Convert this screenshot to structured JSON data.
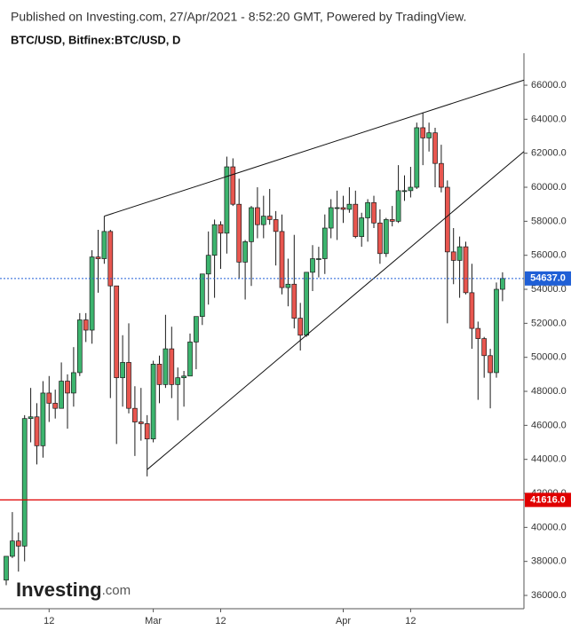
{
  "chart_data": {
    "type": "candlestick",
    "title": "Published on Investing.com, 27/Apr/2021 - 8:52:20 GMT, Powered by TradingView.",
    "subtitle": "BTC/USD, Bitfinex:BTC/USD, D",
    "logo": {
      "name": "Investing",
      "suffix": ".com"
    },
    "categories": [
      null,
      null,
      null,
      null,
      null,
      null,
      null,
      "12",
      null,
      null,
      null,
      null,
      null,
      null,
      null,
      null,
      null,
      null,
      null,
      null,
      null,
      null,
      null,
      null,
      "Mar",
      null,
      null,
      null,
      null,
      null,
      null,
      null,
      null,
      null,
      null,
      "12",
      null,
      null,
      null,
      null,
      null,
      null,
      null,
      null,
      null,
      null,
      null,
      null,
      null,
      null,
      null,
      null,
      null,
      null,
      null,
      "Apr",
      null,
      null,
      null,
      null,
      null,
      null,
      null,
      null,
      null,
      null,
      "12",
      null,
      null,
      null,
      null,
      null,
      null,
      null,
      null,
      null,
      null,
      null,
      null,
      null,
      null,
      null
    ],
    "open": [
      36900,
      38300,
      39200,
      38900,
      46400,
      46500,
      44800,
      47900,
      47300,
      47000,
      48600,
      47900,
      49100,
      52200,
      51600,
      55900,
      55800,
      57400,
      54200,
      48800,
      49700,
      47000,
      46200,
      46100,
      45200,
      49600,
      48400,
      50500,
      48400,
      48800,
      48900,
      50900,
      52400,
      54900,
      56000,
      57800,
      57300,
      61200,
      59000,
      55600,
      56800,
      58800,
      57800,
      58300,
      58100,
      57400,
      54100,
      54300,
      52300,
      51300,
      55000,
      55800,
      55800,
      57600,
      58800,
      58800,
      58700,
      59000,
      57100,
      58200,
      59100,
      57900,
      56100,
      58100,
      58000,
      59800,
      59800,
      60000,
      63500,
      62900,
      63200,
      61400,
      60000,
      56200,
      55700,
      56500,
      53800,
      51700,
      51100,
      50100,
      49100,
      54000
    ],
    "high": [
      38300,
      40900,
      39700,
      46600,
      48200,
      47300,
      48600,
      48900,
      48100,
      49700,
      49000,
      50600,
      52600,
      52600,
      56300,
      57500,
      58300,
      57500,
      54200,
      51300,
      52000,
      48300,
      48200,
      46600,
      49800,
      50100,
      52500,
      51800,
      49400,
      49200,
      51400,
      52400,
      54900,
      57400,
      58100,
      58000,
      61800,
      61700,
      60500,
      56900,
      58900,
      60000,
      59500,
      59900,
      58600,
      58400,
      55800,
      57200,
      53200,
      55000,
      56600,
      56500,
      58400,
      59300,
      59800,
      59500,
      60000,
      59800,
      58500,
      59300,
      59500,
      58700,
      58200,
      58900,
      61300,
      60700,
      61200,
      63800,
      64400,
      63800,
      63500,
      62500,
      60400,
      57600,
      57100,
      56800,
      55500,
      52100,
      51200,
      50500,
      54400,
      55000
    ],
    "low": [
      36600,
      38200,
      37400,
      38000,
      45000,
      43700,
      44100,
      46200,
      46400,
      47000,
      45800,
      47100,
      48900,
      50900,
      50800,
      53800,
      55500,
      47600,
      44900,
      47100,
      46700,
      44200,
      45100,
      43000,
      45000,
      47300,
      48200,
      47600,
      46300,
      47100,
      48900,
      49300,
      51900,
      53100,
      53500,
      55200,
      56100,
      58900,
      54600,
      53400,
      54200,
      57000,
      57000,
      57800,
      55400,
      53700,
      53000,
      51700,
      50400,
      51200,
      53900,
      54700,
      54900,
      57000,
      56900,
      57900,
      58500,
      57000,
      56500,
      56800,
      57600,
      55500,
      55900,
      57700,
      57900,
      59200,
      59400,
      59900,
      61300,
      62100,
      60000,
      59700,
      52000,
      54300,
      53500,
      53700,
      50500,
      47500,
      48800,
      47000,
      48800,
      53300
    ],
    "close": [
      38300,
      39200,
      38900,
      46400,
      46500,
      44800,
      47900,
      47300,
      47000,
      48600,
      47900,
      49100,
      52200,
      51600,
      55900,
      55800,
      57400,
      54200,
      48800,
      49700,
      47000,
      46200,
      46100,
      45200,
      49600,
      48400,
      50500,
      48400,
      48800,
      48900,
      50900,
      52400,
      54900,
      56000,
      57800,
      57300,
      61200,
      59000,
      55600,
      56800,
      58800,
      57800,
      58300,
      58100,
      57400,
      54100,
      54300,
      52300,
      51300,
      55000,
      55800,
      55800,
      57600,
      58800,
      58800,
      58700,
      59000,
      57100,
      58200,
      59100,
      57900,
      56100,
      58100,
      58000,
      59800,
      59800,
      60000,
      63500,
      62900,
      63200,
      61400,
      60000,
      56200,
      55700,
      56500,
      53800,
      51700,
      51100,
      50100,
      49100,
      54000,
      54637
    ],
    "up_color": "#3cb46e",
    "down_color": "#e8564f",
    "outline_color": "#1a1a1a",
    "ylim": [
      35270,
      67880
    ],
    "yticks": [
      {
        "value": 36000,
        "label": "36000.0"
      },
      {
        "value": 38000,
        "label": "38000.0"
      },
      {
        "value": 40000,
        "label": "40000.0"
      },
      {
        "value": 42000,
        "label": "42000.0"
      },
      {
        "value": 44000,
        "label": "44000.0"
      },
      {
        "value": 46000,
        "label": "46000.0"
      },
      {
        "value": 48000,
        "label": "48000.0"
      },
      {
        "value": 50000,
        "label": "50000.0"
      },
      {
        "value": 52000,
        "label": "52000.0"
      },
      {
        "value": 54000,
        "label": "54000.0"
      },
      {
        "value": 56000,
        "label": "56000.0"
      },
      {
        "value": 58000,
        "label": "58000.0"
      },
      {
        "value": 60000,
        "label": "60000.0"
      },
      {
        "value": 62000,
        "label": "62000.0"
      },
      {
        "value": 64000,
        "label": "64000.0"
      },
      {
        "value": 66000,
        "label": "66000.0"
      }
    ],
    "price_lines": [
      {
        "value": 54637,
        "label": "54637.0",
        "color": "#1f5fd6",
        "style": "dotted"
      },
      {
        "value": 41616,
        "label": "41616.0",
        "color": "#e00000",
        "style": "solid"
      }
    ],
    "trendlines": [
      {
        "x": [
          16,
          84.5
        ],
        "y": [
          58300,
          66300
        ]
      },
      {
        "x": [
          23,
          84.5
        ],
        "y": [
          43400,
          62100
        ]
      }
    ],
    "grid": false
  }
}
